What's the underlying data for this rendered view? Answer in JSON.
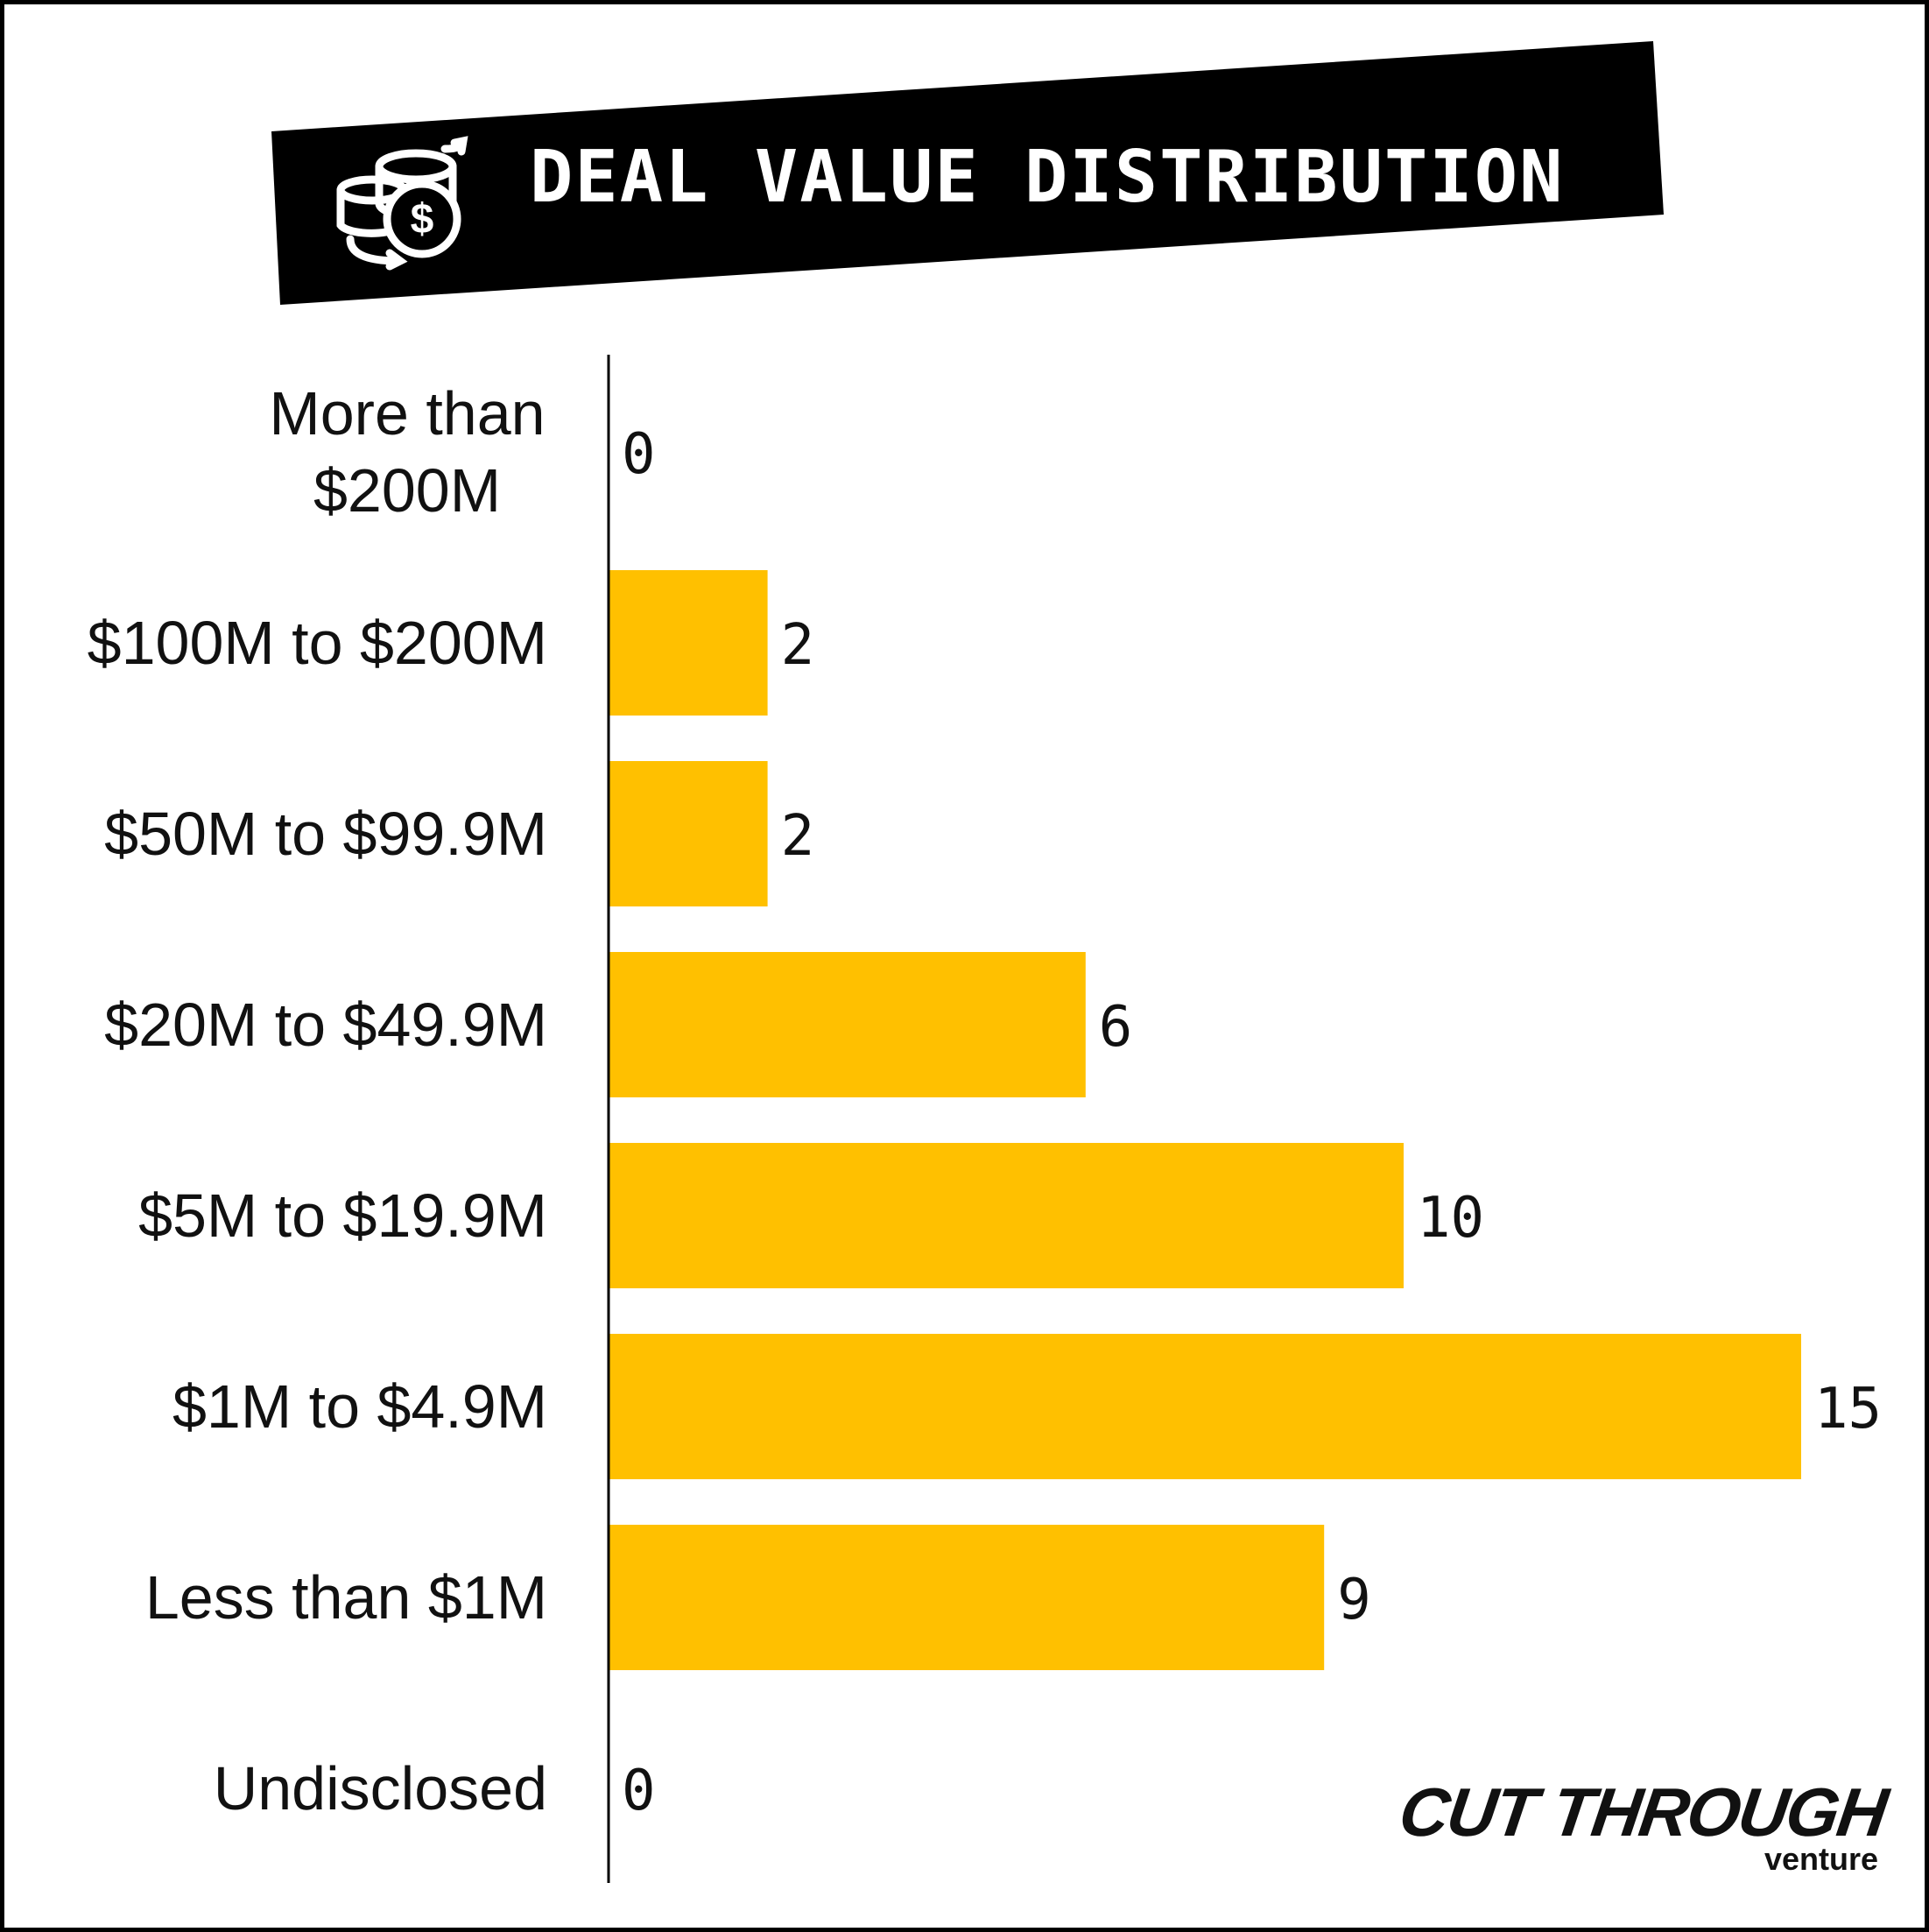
{
  "title": "DEAL VALUE DISTRIBUTION",
  "title_icon": "coins-exchange-icon",
  "colors": {
    "bar": "#FFC000",
    "banner": "#000000",
    "text": "#111111"
  },
  "logo": {
    "main": "CUT THROUGH",
    "sub": "venture"
  },
  "chart_data": {
    "type": "bar",
    "orientation": "horizontal",
    "categories": [
      "More than $200M",
      "$100M to $200M",
      "$50M to $99.9M",
      "$20M to $49.9M",
      "$5M to $19.9M",
      "$1M to $4.9M",
      "Less than $1M",
      "Undisclosed"
    ],
    "category_lines": [
      [
        "More than",
        "$200M"
      ],
      [
        "$100M to $200M"
      ],
      [
        "$50M to $99.9M"
      ],
      [
        "$20M to $49.9M"
      ],
      [
        "$5M to $19.9M"
      ],
      [
        "$1M to $4.9M"
      ],
      [
        "Less than $1M"
      ],
      [
        "Undisclosed"
      ]
    ],
    "values": [
      0,
      2,
      2,
      6,
      10,
      15,
      9,
      0
    ],
    "xlim": [
      0,
      15
    ],
    "grid": false,
    "legend": "none"
  }
}
